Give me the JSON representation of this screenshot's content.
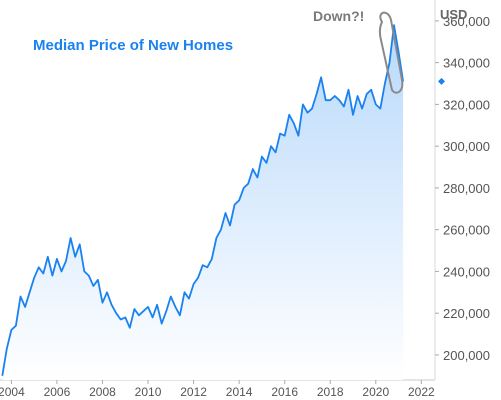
{
  "chart_data": {
    "type": "area",
    "title": "Median Price of New Homes",
    "ylabel": "USD",
    "xlim": [
      2003.5,
      2022.6
    ],
    "ylim": [
      188000,
      370000
    ],
    "xticks": [
      2004,
      2006,
      2008,
      2010,
      2012,
      2014,
      2016,
      2018,
      2020,
      2022
    ],
    "xtick_labels": [
      "2004",
      "2006",
      "2008",
      "2010",
      "2012",
      "2014",
      "2016",
      "2018",
      "2020",
      "2022"
    ],
    "yticks": [
      200000,
      220000,
      240000,
      260000,
      280000,
      300000,
      320000,
      340000,
      360000
    ],
    "ytick_labels": [
      "200,000",
      "220,000",
      "240,000",
      "260,000",
      "280,000",
      "300,000",
      "320,000",
      "340,000",
      "360,000"
    ],
    "grid": false,
    "legend": "none",
    "annotation": "Down?!",
    "last_value_marker": 331000,
    "colors": {
      "line": "#1a82f0",
      "fill_top": "#b8d9fb",
      "fill_bottom": "#ffffff",
      "title": "#1a82f0",
      "annotation": "#7a7a7a"
    },
    "series": [
      {
        "x": [
          2003.6,
          2003.8,
          2004.0,
          2004.2,
          2004.4,
          2004.6,
          2004.8,
          2005.0,
          2005.2,
          2005.4,
          2005.6,
          2005.8,
          2006.0,
          2006.2,
          2006.4,
          2006.6,
          2006.8,
          2007.0,
          2007.2,
          2007.4,
          2007.6,
          2007.8,
          2008.0,
          2008.2,
          2008.4,
          2008.6,
          2008.8,
          2009.0,
          2009.2,
          2009.4,
          2009.6,
          2009.8,
          2010.0,
          2010.2,
          2010.4,
          2010.6,
          2010.8,
          2011.0,
          2011.2,
          2011.4,
          2011.6,
          2011.8,
          2012.0,
          2012.2,
          2012.4,
          2012.6,
          2012.8,
          2013.0,
          2013.2,
          2013.4,
          2013.6,
          2013.8,
          2014.0,
          2014.2,
          2014.4,
          2014.6,
          2014.8,
          2015.0,
          2015.2,
          2015.4,
          2015.6,
          2015.8,
          2016.0,
          2016.2,
          2016.4,
          2016.6,
          2016.8,
          2017.0,
          2017.2,
          2017.4,
          2017.6,
          2017.8,
          2018.0,
          2018.2,
          2018.4,
          2018.6,
          2018.8,
          2019.0,
          2019.2,
          2019.4,
          2019.6,
          2019.8,
          2020.0,
          2020.2,
          2020.4,
          2020.6,
          2020.8,
          2021.0,
          2021.2
        ],
        "y": [
          190000,
          203000,
          212000,
          214000,
          228000,
          223000,
          230000,
          237000,
          242000,
          239000,
          247000,
          238000,
          246000,
          240000,
          245000,
          256000,
          247000,
          253000,
          240000,
          238000,
          233000,
          236000,
          225000,
          230000,
          224000,
          220000,
          217000,
          218000,
          213000,
          222000,
          219000,
          221000,
          223000,
          218000,
          224000,
          215000,
          221000,
          228000,
          223000,
          219000,
          230000,
          227000,
          234000,
          237000,
          243000,
          242000,
          246000,
          256000,
          260000,
          268000,
          262000,
          272000,
          274000,
          280000,
          282000,
          289000,
          285000,
          295000,
          292000,
          300000,
          297000,
          306000,
          305000,
          315000,
          311000,
          305000,
          320000,
          316000,
          318000,
          325000,
          333000,
          322000,
          322000,
          324000,
          322000,
          319000,
          327000,
          315000,
          324000,
          318000,
          325000,
          327000,
          320000,
          318000,
          330000,
          340000,
          358000,
          345000,
          331000
        ]
      }
    ]
  }
}
